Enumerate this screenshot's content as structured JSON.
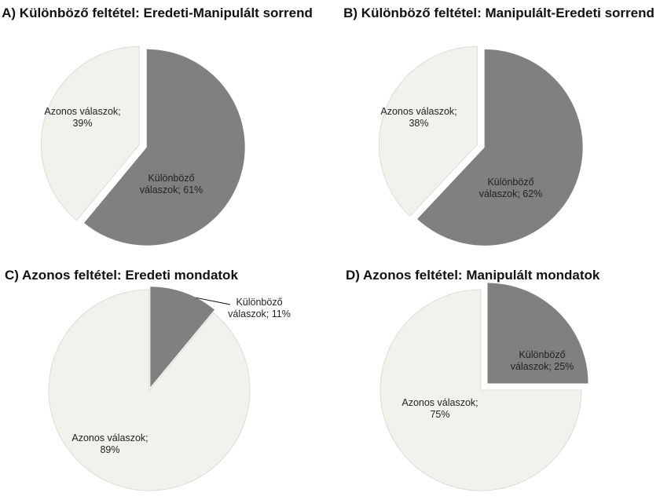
{
  "chart_data": [
    {
      "type": "pie",
      "title": "A) Különböző feltétel: Eredeti-Manipulált sorrend",
      "values": [
        61,
        39
      ],
      "value_labels": [
        "Különböző válaszok; 61%",
        "Azonos válaszok; 39%"
      ],
      "colors": [
        "#808080",
        "#f2f1ec"
      ]
    },
    {
      "type": "pie",
      "title": "B) Különböző feltétel: Manipulált-Eredeti sorrend",
      "values": [
        62,
        38
      ],
      "value_labels": [
        "Különböző válaszok; 62%",
        "Azonos válaszok; 38%"
      ],
      "colors": [
        "#808080",
        "#f2f1ec"
      ]
    },
    {
      "type": "pie",
      "title": "C) Azonos feltétel: Eredeti mondatok",
      "values": [
        11,
        89
      ],
      "value_labels": [
        "Különböző válaszok; 11%",
        "Azonos válaszok; 89%"
      ],
      "colors": [
        "#808080",
        "#f2f1ec"
      ]
    },
    {
      "type": "pie",
      "title": "D) Azonos feltétel: Manipulált mondatok",
      "values": [
        25,
        75
      ],
      "value_labels": [
        "Különböző válaszok; 25%",
        "Azonos válaszok; 75%"
      ],
      "colors": [
        "#808080",
        "#f2f1ec"
      ]
    }
  ]
}
